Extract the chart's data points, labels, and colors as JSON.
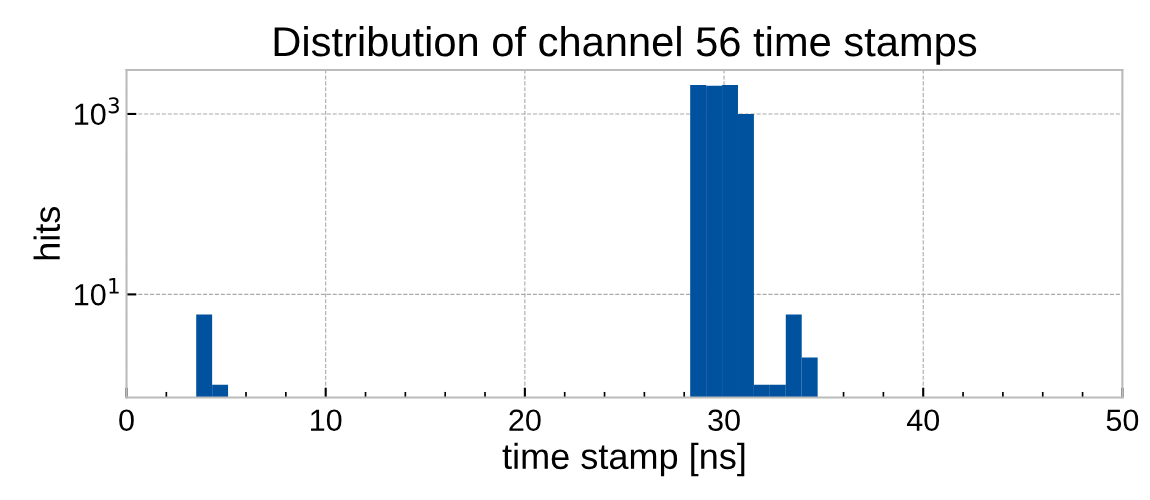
{
  "chart_data": {
    "type": "histogram",
    "title": "Distribution of channel 56 time stamps",
    "xlabel": "time stamp [ns]",
    "ylabel": "hits",
    "bins": [
      3.5,
      4.3,
      5.1,
      5.9,
      6.7,
      7.5,
      8.3,
      9.1,
      9.9,
      10.7,
      11.5,
      12.3,
      13.1,
      13.9,
      14.7,
      15.5,
      16.3,
      17.1,
      17.9,
      18.7,
      19.5,
      20.3,
      21.1,
      21.9,
      22.7,
      23.5,
      24.3,
      25.1,
      25.9,
      26.7,
      27.5,
      28.3,
      29.1,
      29.9,
      30.7,
      31.5,
      32.3,
      33.1,
      33.9,
      34.7
    ],
    "values": [
      6,
      1,
      null,
      null,
      null,
      null,
      null,
      null,
      null,
      null,
      null,
      null,
      null,
      null,
      null,
      null,
      null,
      null,
      null,
      null,
      null,
      null,
      null,
      null,
      null,
      null,
      null,
      null,
      null,
      null,
      null,
      2100,
      2050,
      2100,
      1000,
      1,
      1,
      6,
      2
    ],
    "color": "#00529f",
    "log": "y",
    "xlim": [
      0,
      50
    ],
    "xticks": [
      0,
      {
        "value": 2,
        "label": null
      },
      {
        "value": 4,
        "label": null
      },
      {
        "value": 6,
        "label": null
      },
      {
        "value": 8,
        "label": null
      },
      10,
      {
        "value": 12,
        "label": null
      },
      {
        "value": 14,
        "label": null
      },
      {
        "value": 16,
        "label": null
      },
      {
        "value": 18,
        "label": null
      },
      20,
      {
        "value": 22,
        "label": null
      },
      {
        "value": 24,
        "label": null
      },
      {
        "value": 26,
        "label": null
      },
      {
        "value": 28,
        "label": null
      },
      30,
      {
        "value": 32,
        "label": null
      },
      {
        "value": 34,
        "label": null
      },
      {
        "value": 36,
        "label": null
      },
      {
        "value": 38,
        "label": null
      },
      40,
      {
        "value": 42,
        "label": null
      },
      {
        "value": 44,
        "label": null
      },
      {
        "value": 46,
        "label": null
      },
      {
        "value": 48,
        "label": null
      },
      50
    ],
    "ylim": [
      0.72,
      3070
    ],
    "yticks": [
      {
        "value": 10,
        "label": "10$^{1}$"
      },
      {
        "value": 1000,
        "label": "10$^{3}$"
      }
    ],
    "grid": true
  }
}
